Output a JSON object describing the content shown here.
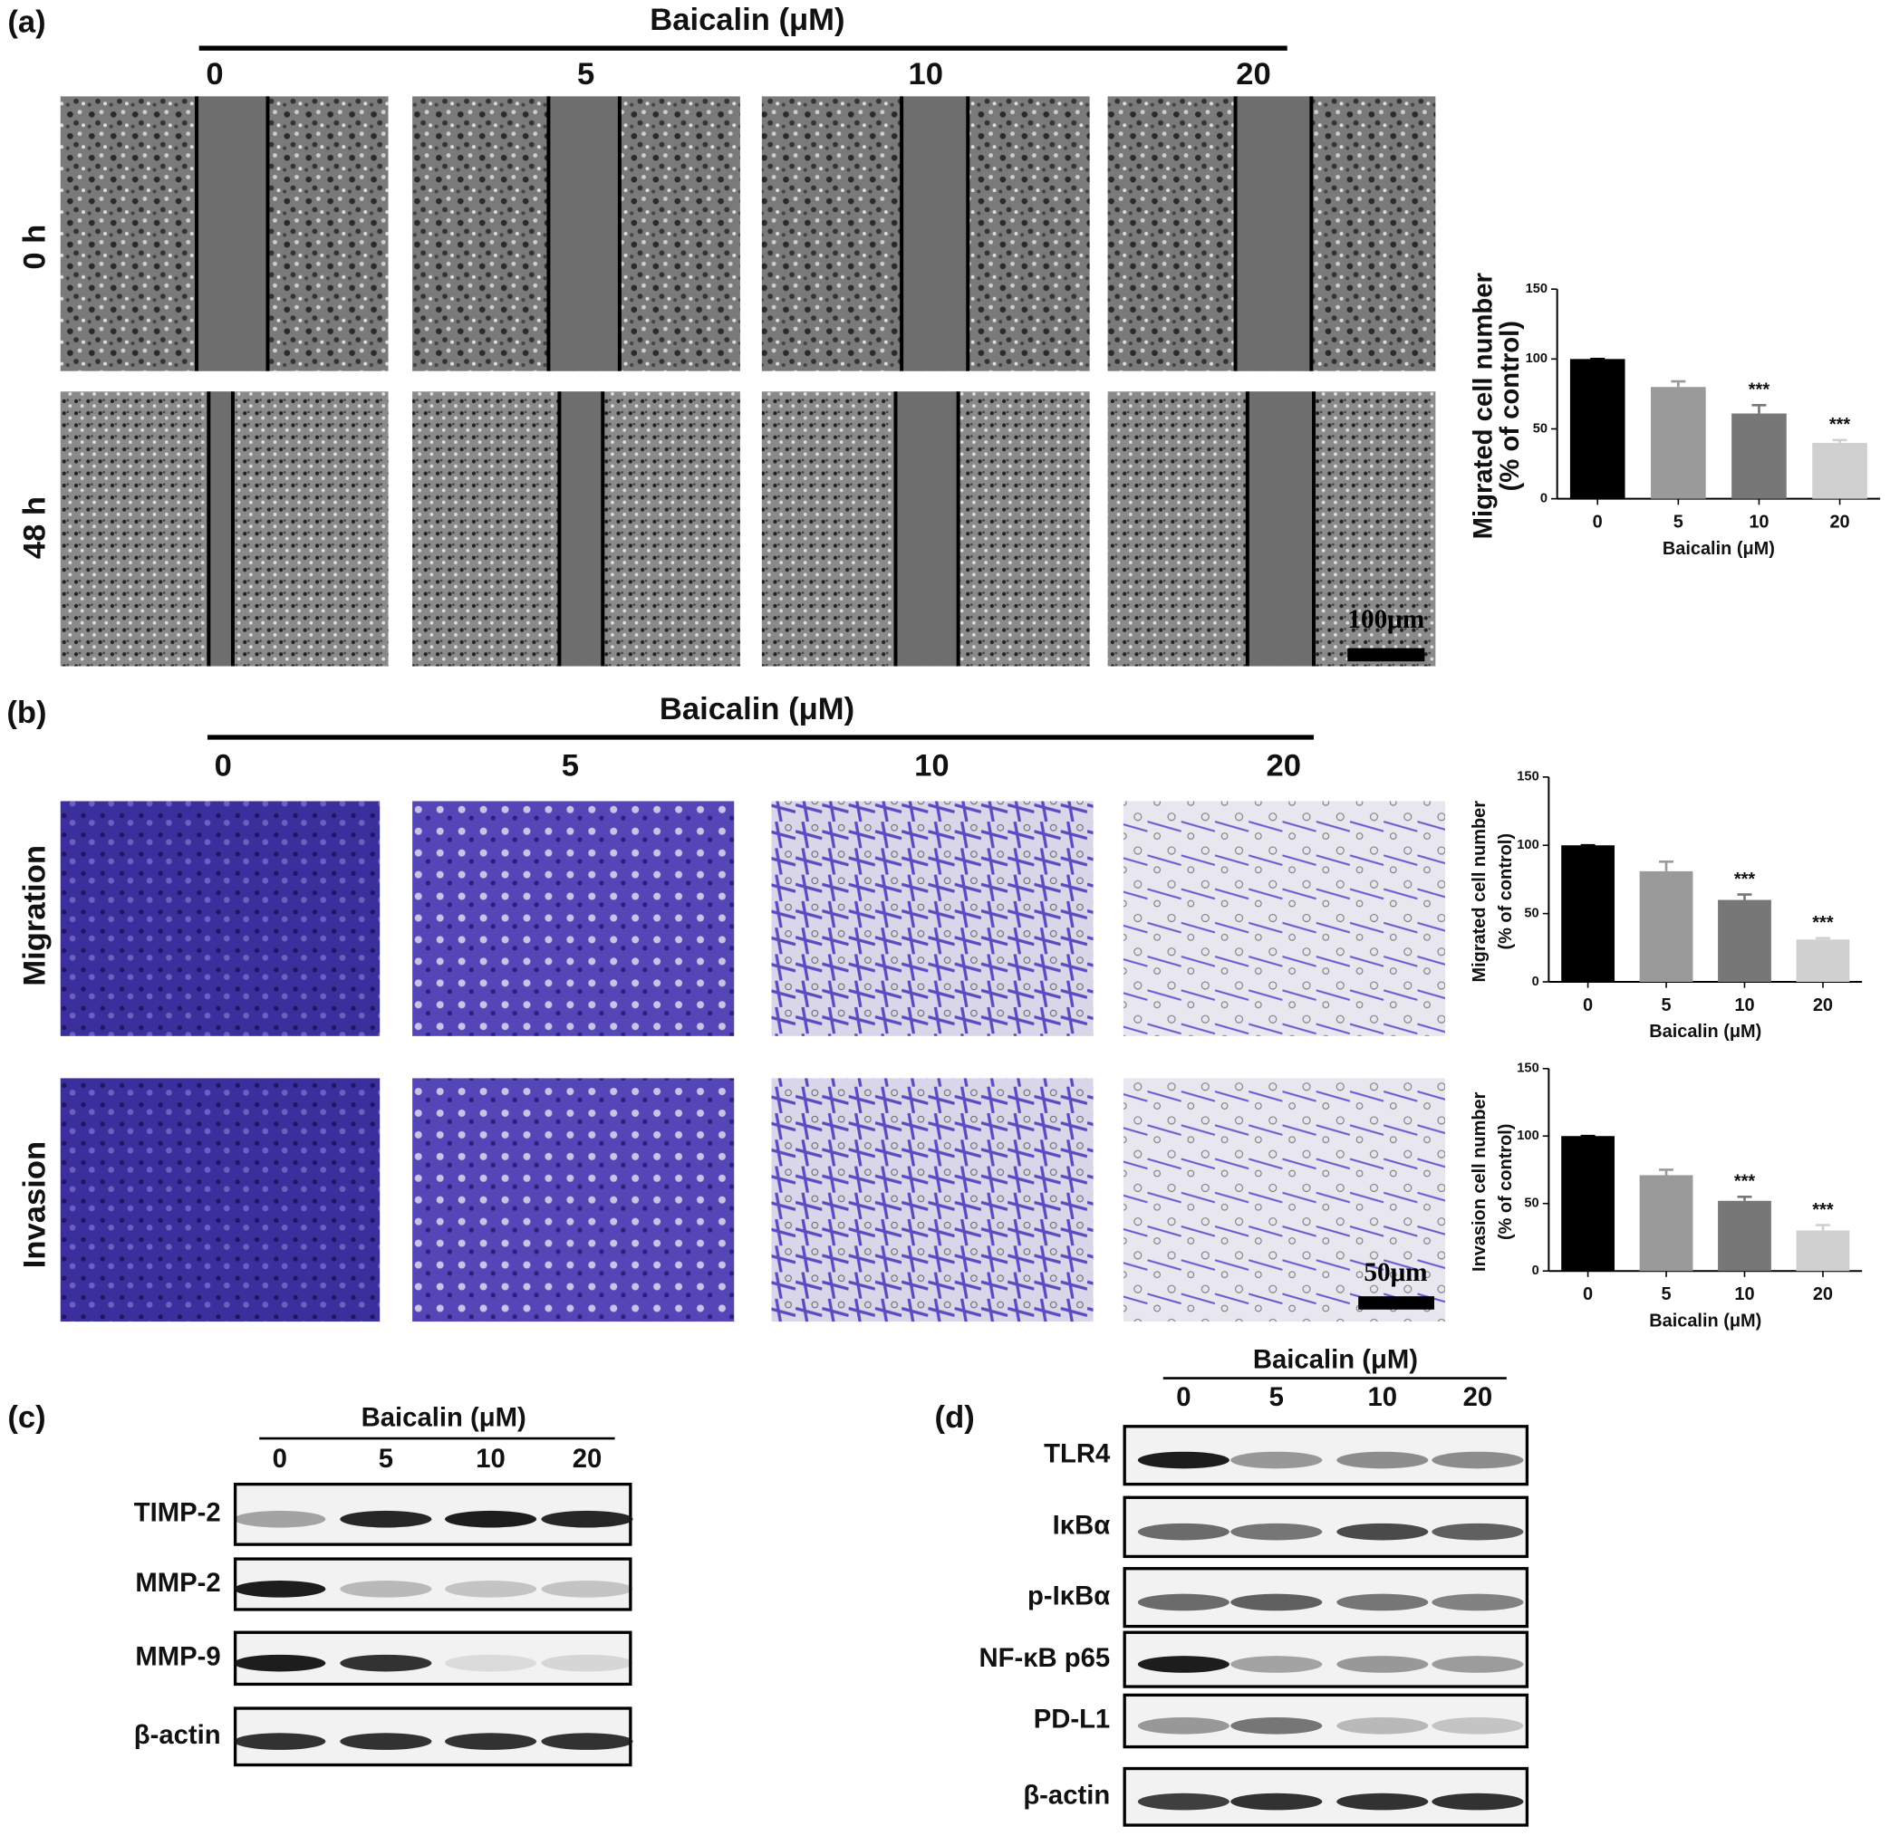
{
  "panel_a": {
    "label": "(a)",
    "treatment": "Baicalin (μM)",
    "doses": [
      "0",
      "5",
      "10",
      "20"
    ],
    "rows": [
      "0 h",
      "48 h"
    ],
    "scale_bar": "100μm"
  },
  "panel_b": {
    "label": "(b)",
    "treatment": "Baicalin (μM)",
    "doses": [
      "0",
      "5",
      "10",
      "20"
    ],
    "rows": [
      "Migration",
      "Invasion"
    ],
    "scale_bar": "50μm"
  },
  "panel_c": {
    "label": "(c)",
    "treatment": "Baicalin (μM)",
    "doses": [
      "0",
      "5",
      "10",
      "20"
    ],
    "proteins": [
      "TIMP-2",
      "MMP-2",
      "MMP-9",
      "β-actin"
    ]
  },
  "panel_d": {
    "label": "(d)",
    "treatment": "Baicalin (μM)",
    "doses": [
      "0",
      "5",
      "10",
      "20"
    ],
    "proteins": [
      "TLR4",
      "IκBα",
      "p-IκBα",
      "NF-κB p65",
      "PD-L1",
      "β-actin"
    ]
  },
  "chart_data": [
    {
      "type": "bar",
      "ylabel": [
        "Migrated cell number",
        "(% of control)"
      ],
      "xlabel": "Baicalin (μM)",
      "categories": [
        "0",
        "5",
        "10",
        "20"
      ],
      "values": [
        100,
        80,
        61,
        40
      ],
      "errors": [
        0,
        4,
        6,
        2
      ],
      "colors": [
        "#000000",
        "#9a9a9a",
        "#777777",
        "#d0d0d0"
      ],
      "ylim": [
        0,
        150
      ],
      "yticks": [
        0,
        50,
        100,
        150
      ],
      "annotations": [
        {
          "category": "10",
          "text": "***"
        },
        {
          "category": "20",
          "text": "***"
        }
      ]
    },
    {
      "type": "bar",
      "ylabel": [
        "Migrated cell number",
        "(% of control)"
      ],
      "xlabel": "Baicalin (μM)",
      "categories": [
        "0",
        "5",
        "10",
        "20"
      ],
      "values": [
        100,
        81,
        60,
        31
      ],
      "errors": [
        0,
        7,
        4,
        1
      ],
      "colors": [
        "#000000",
        "#9a9a9a",
        "#777777",
        "#d0d0d0"
      ],
      "ylim": [
        0,
        150
      ],
      "yticks": [
        0,
        50,
        100,
        150
      ],
      "annotations": [
        {
          "category": "10",
          "text": "***"
        },
        {
          "category": "20",
          "text": "***"
        }
      ]
    },
    {
      "type": "bar",
      "ylabel": [
        "Invasion cell number",
        "(% of control)"
      ],
      "xlabel": "Baicalin (μM)",
      "categories": [
        "0",
        "5",
        "10",
        "20"
      ],
      "values": [
        100,
        71,
        52,
        30
      ],
      "errors": [
        0,
        4,
        3,
        4
      ],
      "colors": [
        "#000000",
        "#9a9a9a",
        "#777777",
        "#d0d0d0"
      ],
      "ylim": [
        0,
        150
      ],
      "yticks": [
        0,
        50,
        100,
        150
      ],
      "annotations": [
        {
          "category": "10",
          "text": "***"
        },
        {
          "category": "20",
          "text": "***"
        }
      ]
    }
  ]
}
